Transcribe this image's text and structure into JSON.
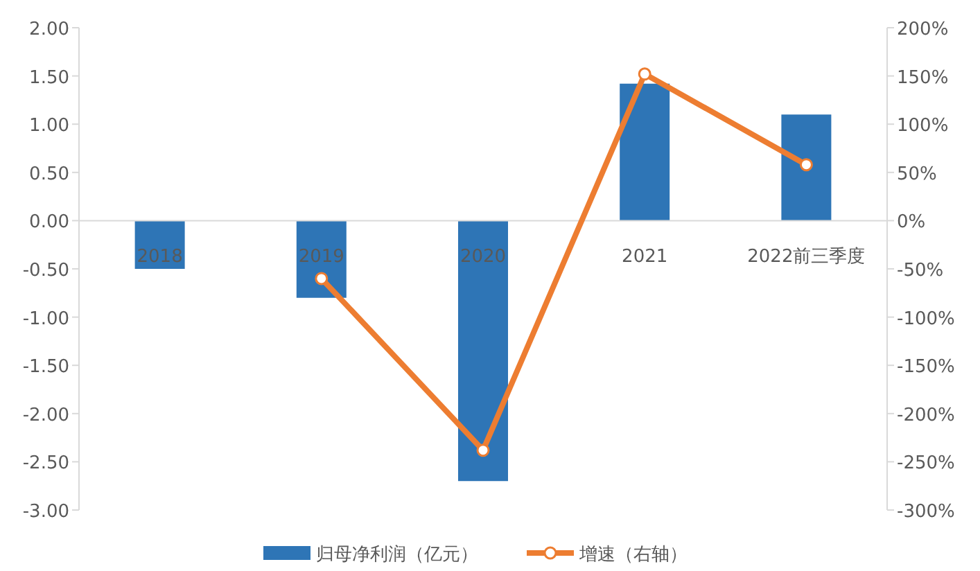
{
  "chart_data": {
    "type": "bar",
    "categories": [
      "2018",
      "2019",
      "2020",
      "2021",
      "2022前三季度"
    ],
    "series": [
      {
        "name": "归母净利润（亿元）",
        "color": "#2e75b6",
        "values": [
          -0.5,
          -0.8,
          -2.7,
          1.42,
          1.1
        ]
      },
      {
        "name": "增速（右轴）",
        "type": "line",
        "axis": "y2",
        "color": "#ed7d31",
        "values": [
          null,
          -60,
          -238,
          152,
          58
        ]
      }
    ],
    "ylim": [
      -3,
      2
    ],
    "yticks": [
      {
        "value": -3,
        "label": "-3.00"
      },
      {
        "value": -2.5,
        "label": "-2.50"
      },
      {
        "value": -2,
        "label": "-2.00"
      },
      {
        "value": -1.5,
        "label": "-1.50"
      },
      {
        "value": -1,
        "label": "-1.00"
      },
      {
        "value": -0.5,
        "label": "-0.50"
      },
      {
        "value": 0,
        "label": "0.00"
      },
      {
        "value": 0.5,
        "label": "0.50"
      },
      {
        "value": 1,
        "label": "1.00"
      },
      {
        "value": 1.5,
        "label": "1.50"
      },
      {
        "value": 2,
        "label": "2.00"
      }
    ],
    "y2lim": [
      -300,
      200
    ],
    "y2ticks": [
      {
        "value": -300,
        "label": "-300%"
      },
      {
        "value": -250,
        "label": "-250%"
      },
      {
        "value": -200,
        "label": "-200%"
      },
      {
        "value": -150,
        "label": "-150%"
      },
      {
        "value": -100,
        "label": "-100%"
      },
      {
        "value": -50,
        "label": "-50%"
      },
      {
        "value": 0,
        "label": "0%"
      },
      {
        "value": 50,
        "label": "50%"
      },
      {
        "value": 100,
        "label": "100%"
      },
      {
        "value": 150,
        "label": "150%"
      },
      {
        "value": 200,
        "label": "200%"
      }
    ],
    "marker": "circle",
    "legend": "bottom"
  }
}
